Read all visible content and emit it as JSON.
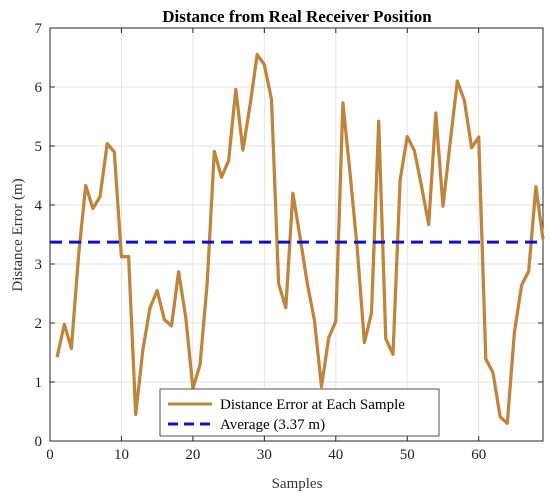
{
  "chart_data": {
    "type": "line",
    "title": "Distance from Real Receiver Position",
    "xlabel": "Samples",
    "ylabel": "Distance Error (m)",
    "xlim": [
      0,
      69
    ],
    "ylim": [
      0,
      7
    ],
    "xticks": [
      0,
      10,
      20,
      30,
      40,
      50,
      60
    ],
    "yticks": [
      0,
      1,
      2,
      3,
      4,
      5,
      6,
      7
    ],
    "grid": true,
    "legend_position": "bottom-center",
    "series": [
      {
        "name": "Distance Error at Each Sample",
        "color": "#B8893A",
        "color_overlay": "#E2672A",
        "style": "solid",
        "x": [
          1,
          2,
          3,
          4,
          5,
          6,
          7,
          8,
          9,
          10,
          11,
          12,
          13,
          14,
          15,
          16,
          17,
          18,
          19,
          20,
          21,
          22,
          23,
          24,
          25,
          26,
          27,
          28,
          29,
          30,
          31,
          32,
          33,
          34,
          35,
          36,
          37,
          38,
          39,
          40,
          41,
          42,
          43,
          44,
          45,
          46,
          47,
          48,
          49,
          50,
          51,
          52,
          53,
          54,
          55,
          56,
          57,
          58,
          59,
          60,
          61,
          62,
          63,
          64,
          65,
          66,
          67,
          68,
          69
        ],
        "values": [
          1.42,
          1.98,
          1.57,
          3.15,
          4.33,
          3.94,
          4.14,
          5.04,
          4.9,
          3.12,
          3.13,
          0.45,
          1.55,
          2.26,
          2.55,
          2.06,
          1.95,
          2.87,
          2.09,
          0.89,
          1.29,
          2.68,
          4.91,
          4.47,
          4.75,
          5.96,
          4.93,
          5.7,
          6.55,
          6.38,
          5.79,
          2.67,
          2.26,
          4.2,
          3.45,
          2.68,
          2.05,
          0.92,
          1.75,
          2.03,
          5.73,
          4.53,
          3.27,
          1.67,
          2.17,
          5.42,
          1.73,
          1.47,
          4.42,
          5.16,
          4.92,
          4.32,
          3.67,
          5.56,
          3.98,
          5.05,
          6.1,
          5.77,
          4.97,
          5.15,
          1.39,
          1.16,
          0.41,
          0.3,
          1.84,
          2.64,
          2.88,
          4.31,
          3.42
        ]
      },
      {
        "name": "Average (3.37 m)",
        "color": "#1010C8",
        "style": "dashed",
        "x": [
          0,
          69
        ],
        "values": [
          3.37,
          3.37
        ]
      }
    ]
  }
}
